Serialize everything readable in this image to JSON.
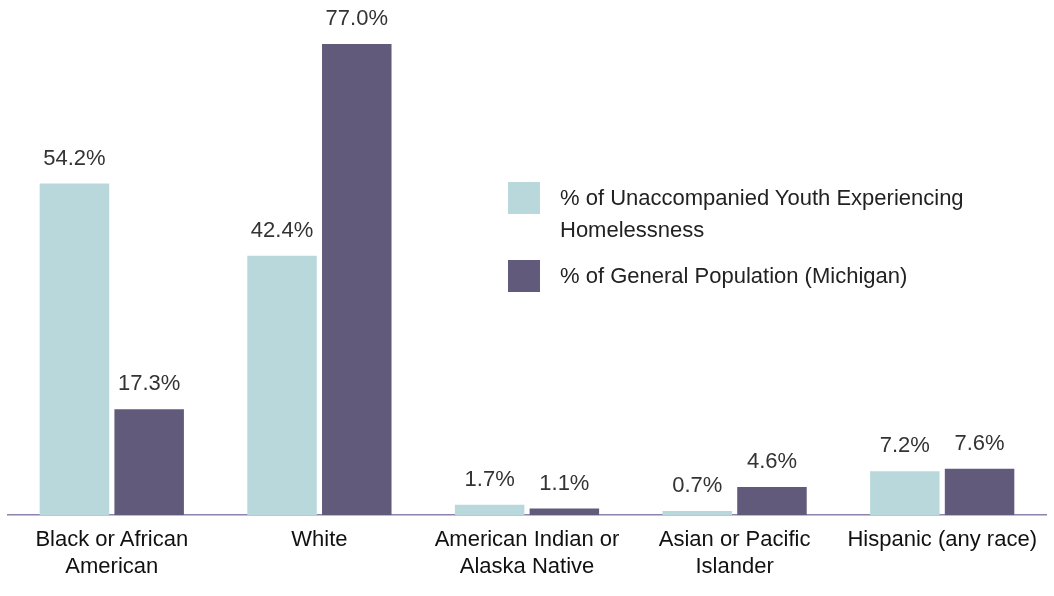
{
  "chart_data": {
    "type": "bar",
    "categories": [
      "Black or African American",
      "White",
      "American Indian or Alaska Native",
      "Asian or Pacific Islander",
      "Hispanic (any race)"
    ],
    "series": [
      {
        "name": "% of Unaccompanied Youth Experiencing Homelessness",
        "color": "#b9d8dc",
        "values": [
          54.2,
          42.4,
          1.7,
          0.7,
          7.2
        ],
        "value_labels": [
          "54.2%",
          "42.4%",
          "1.7%",
          "0.7%",
          "7.2%"
        ]
      },
      {
        "name": "% of General Population (Michigan)",
        "color": "#615a7b",
        "values": [
          17.3,
          77.0,
          1.1,
          4.6,
          7.6
        ],
        "value_labels": [
          "17.3%",
          "77.0%",
          "1.1%",
          "4.6%",
          "7.6%"
        ]
      }
    ],
    "ylim": [
      0,
      77
    ],
    "tick_labels": "x",
    "grid": false,
    "legend": "right"
  }
}
